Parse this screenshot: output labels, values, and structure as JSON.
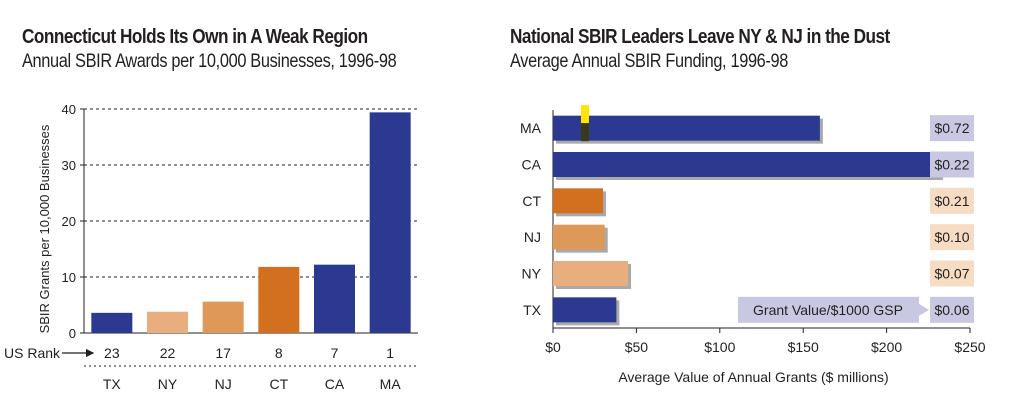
{
  "chart_data": [
    {
      "type": "bar",
      "title": "Connecticut Holds Its Own in A Weak Region",
      "subtitle": "Annual SBIR Awards per 10,000 Businesses, 1996-98",
      "ylabel": "SBIR Grants per 10,000 Businesses",
      "xlabel": "",
      "ylim": [
        0,
        40
      ],
      "yticks": [
        "0",
        "10",
        "20",
        "30",
        "40"
      ],
      "grid": "horizontal dashed",
      "categories": [
        "TX",
        "NY",
        "NJ",
        "CT",
        "CA",
        "MA"
      ],
      "values": [
        3.6,
        3.8,
        5.6,
        11.8,
        12.2,
        39.4
      ],
      "colors": [
        "#2b3990",
        "#e8ae7e",
        "#de9857",
        "#d2701f",
        "#2b3990",
        "#2b3990"
      ],
      "rank_label": "US Rank",
      "ranks": [
        "23",
        "22",
        "17",
        "8",
        "7",
        "1"
      ]
    },
    {
      "type": "bar",
      "orientation": "horizontal",
      "title": "National SBIR Leaders Leave NY & NJ in the Dust",
      "subtitle": "Average Annual SBIR Funding, 1996-98",
      "xlabel": "Average Value of Annual Grants ($ millions)",
      "xlim": [
        0,
        250
      ],
      "xticks": [
        "$0",
        "$50",
        "$100",
        "$150",
        "$200",
        "$250"
      ],
      "categories": [
        "MA",
        "CA",
        "CT",
        "NJ",
        "NY",
        "TX"
      ],
      "values": [
        160,
        232,
        30,
        31,
        45,
        38
      ],
      "colors": [
        "#2b3990",
        "#2b3990",
        "#d2701f",
        "#de9857",
        "#e8ae7e",
        "#2b3990"
      ],
      "grant_values": [
        "$0.72",
        "$0.22",
        "$0.21",
        "$0.10",
        "$0.07",
        "$0.06"
      ],
      "grant_value_label": "Grant Value/$1000 GSP"
    }
  ]
}
